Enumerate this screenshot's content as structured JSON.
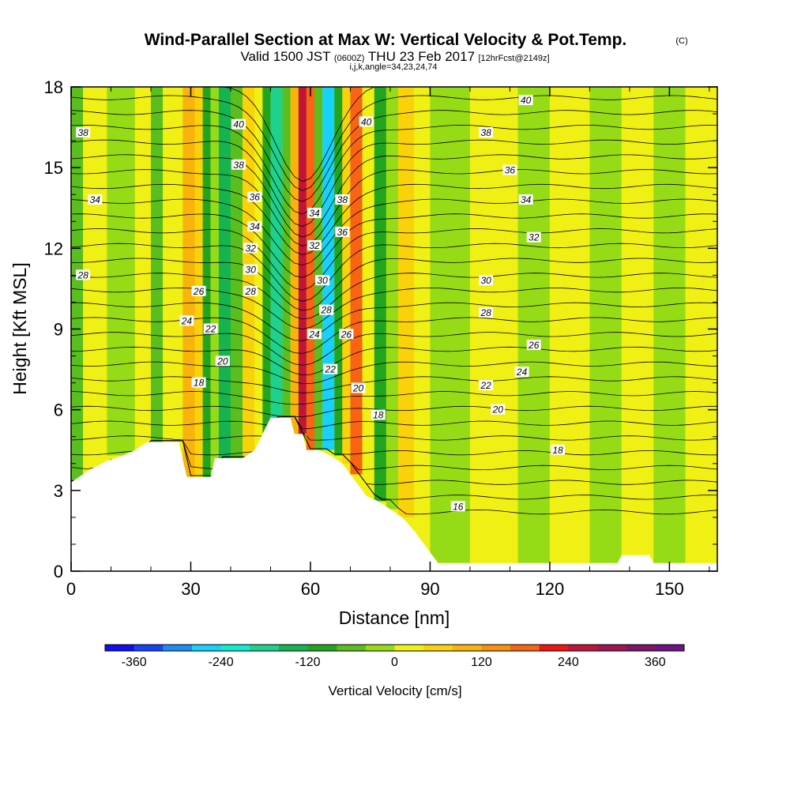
{
  "title": {
    "main": "Wind-Parallel Section at Max W: Vertical Velocity & Pot.Temp.",
    "main_mark": "(C)",
    "valid_a": "Valid 1500 JST",
    "valid_b": "(0600Z)",
    "valid_c": "THU 23 Feb 2017",
    "valid_d": "[12hrFcst@2149z]",
    "sub": "i,j,k,angle=34,23,24,74"
  },
  "chart_data": {
    "type": "heatmap",
    "xlabel": "Distance [nm]",
    "ylabel": "Height [Kft MSL]",
    "xlim": [
      0,
      162
    ],
    "ylim": [
      0,
      18
    ],
    "x_ticks": [
      0,
      30,
      60,
      90,
      120,
      150
    ],
    "y_ticks": [
      0,
      3,
      6,
      9,
      12,
      15,
      18
    ],
    "grid": false,
    "colorbar": {
      "label": "Vertical Velocity [cm/s]",
      "tick_labels": [
        -360,
        -240,
        -120,
        0,
        120,
        240,
        360
      ],
      "range": [
        -400,
        400
      ],
      "colors": [
        "#1010ee",
        "#1446f5",
        "#1e8cf5",
        "#16d2fa",
        "#10ecd0",
        "#1ed28c",
        "#16b450",
        "#22a41e",
        "#5abe1e",
        "#96dc16",
        "#f0f014",
        "#fad20a",
        "#f8b40a",
        "#fa9010",
        "#f86414",
        "#f01414",
        "#c01438",
        "#a01450",
        "#801468",
        "#6e1486"
      ]
    },
    "terrain_profile": [
      [
        0,
        3.3
      ],
      [
        2,
        3.5
      ],
      [
        5,
        3.8
      ],
      [
        9,
        4.1
      ],
      [
        13,
        4.3
      ],
      [
        16,
        4.5
      ],
      [
        19,
        4.8
      ],
      [
        27,
        4.8
      ],
      [
        29,
        3.5
      ],
      [
        35,
        3.5
      ],
      [
        36,
        4.2
      ],
      [
        43,
        4.2
      ],
      [
        46,
        4.5
      ],
      [
        48,
        5.1
      ],
      [
        50,
        5.7
      ],
      [
        55,
        5.7
      ],
      [
        56,
        5.1
      ],
      [
        58,
        5.1
      ],
      [
        59,
        4.5
      ],
      [
        62,
        4.5
      ],
      [
        65,
        4.3
      ],
      [
        68,
        4.0
      ],
      [
        70,
        3.6
      ],
      [
        72,
        3.2
      ],
      [
        74,
        2.8
      ],
      [
        77,
        2.6
      ],
      [
        80,
        2.3
      ],
      [
        83,
        2.0
      ],
      [
        86,
        1.5
      ],
      [
        88,
        1.1
      ],
      [
        90,
        0.7
      ],
      [
        92,
        0.3
      ],
      [
        95,
        0.3
      ],
      [
        137,
        0.3
      ],
      [
        138,
        0.6
      ],
      [
        145,
        0.6
      ],
      [
        146,
        0.3
      ],
      [
        162,
        0.3
      ]
    ],
    "vertical_velocity_cells": [
      {
        "x_range": [
          0,
          3
        ],
        "y_range": [
          3.3,
          18
        ],
        "w": -50
      },
      {
        "x_range": [
          3,
          9
        ],
        "y_range": [
          3.5,
          18
        ],
        "w": 20
      },
      {
        "x_range": [
          9,
          16
        ],
        "y_range": [
          4.3,
          18
        ],
        "w": -40
      },
      {
        "x_range": [
          16,
          20
        ],
        "y_range": [
          4.8,
          18
        ],
        "w": 30
      },
      {
        "x_range": [
          20,
          23
        ],
        "y_range": [
          4.8,
          18
        ],
        "w": -70
      },
      {
        "x_range": [
          23,
          28
        ],
        "y_range": [
          4.8,
          18
        ],
        "w": 30
      },
      {
        "x_range": [
          28,
          31
        ],
        "y_range": [
          3.5,
          18
        ],
        "w": 110
      },
      {
        "x_range": [
          31,
          33
        ],
        "y_range": [
          3.5,
          18
        ],
        "w": 40
      },
      {
        "x_range": [
          33,
          35
        ],
        "y_range": [
          3.5,
          18
        ],
        "w": -100
      },
      {
        "x_range": [
          35,
          37
        ],
        "y_range": [
          3.5,
          18
        ],
        "w": -30
      },
      {
        "x_range": [
          37,
          40
        ],
        "y_range": [
          4.2,
          18
        ],
        "w": -130
      },
      {
        "x_range": [
          40,
          43
        ],
        "y_range": [
          4.2,
          18
        ],
        "w": -60
      },
      {
        "x_range": [
          43,
          46
        ],
        "y_range": [
          4.2,
          18
        ],
        "w": 60
      },
      {
        "x_range": [
          46,
          48
        ],
        "y_range": [
          4.5,
          18
        ],
        "w": 20
      },
      {
        "x_range": [
          48,
          50
        ],
        "y_range": [
          5.1,
          18
        ],
        "w": -120
      },
      {
        "x_range": [
          50,
          53
        ],
        "y_range": [
          5.7,
          18
        ],
        "w": -170
      },
      {
        "x_range": [
          53,
          55
        ],
        "y_range": [
          5.7,
          18
        ],
        "w": -60
      },
      {
        "x_range": [
          55,
          57
        ],
        "y_range": [
          5.1,
          18
        ],
        "w": 110
      },
      {
        "x_range": [
          57,
          59
        ],
        "y_range": [
          5.1,
          18
        ],
        "w": 260
      },
      {
        "x_range": [
          59,
          61
        ],
        "y_range": [
          4.5,
          18
        ],
        "w": 170
      },
      {
        "x_range": [
          61,
          63
        ],
        "y_range": [
          4.5,
          18
        ],
        "w": -60
      },
      {
        "x_range": [
          63,
          66
        ],
        "y_range": [
          4.5,
          18
        ],
        "w": -270
      },
      {
        "x_range": [
          66,
          68
        ],
        "y_range": [
          4.3,
          18
        ],
        "w": -120
      },
      {
        "x_range": [
          68,
          70
        ],
        "y_range": [
          4.0,
          18
        ],
        "w": 60
      },
      {
        "x_range": [
          70,
          73
        ],
        "y_range": [
          3.6,
          18
        ],
        "w": 170
      },
      {
        "x_range": [
          73,
          76
        ],
        "y_range": [
          2.8,
          18
        ],
        "w": 30
      },
      {
        "x_range": [
          76,
          79
        ],
        "y_range": [
          2.6,
          18
        ],
        "w": -110
      },
      {
        "x_range": [
          79,
          82
        ],
        "y_range": [
          2.3,
          18
        ],
        "w": -40
      },
      {
        "x_range": [
          82,
          86
        ],
        "y_range": [
          2.0,
          18
        ],
        "w": 60
      },
      {
        "x_range": [
          86,
          90
        ],
        "y_range": [
          1.1,
          18
        ],
        "w": 30
      },
      {
        "x_range": [
          90,
          100
        ],
        "y_range": [
          0.3,
          18
        ],
        "w": -25
      },
      {
        "x_range": [
          100,
          112
        ],
        "y_range": [
          0.3,
          18
        ],
        "w": 20
      },
      {
        "x_range": [
          112,
          120
        ],
        "y_range": [
          0.3,
          18
        ],
        "w": -20
      },
      {
        "x_range": [
          120,
          130
        ],
        "y_range": [
          0.3,
          18
        ],
        "w": 15
      },
      {
        "x_range": [
          130,
          138
        ],
        "y_range": [
          0.3,
          18
        ],
        "w": -35
      },
      {
        "x_range": [
          138,
          146
        ],
        "y_range": [
          0.6,
          18
        ],
        "w": 20
      },
      {
        "x_range": [
          146,
          154
        ],
        "y_range": [
          0.3,
          18
        ],
        "w": -30
      },
      {
        "x_range": [
          154,
          162
        ],
        "y_range": [
          0.3,
          18
        ],
        "w": 15
      }
    ],
    "potential_temperature_labels": [
      {
        "text": "38",
        "x": 3,
        "y": 16.3
      },
      {
        "text": "34",
        "x": 6,
        "y": 13.8
      },
      {
        "text": "28",
        "x": 3,
        "y": 11.0
      },
      {
        "text": "40",
        "x": 42,
        "y": 16.6
      },
      {
        "text": "38",
        "x": 42,
        "y": 15.1
      },
      {
        "text": "36",
        "x": 46,
        "y": 13.9
      },
      {
        "text": "34",
        "x": 46,
        "y": 12.8
      },
      {
        "text": "32",
        "x": 45,
        "y": 12.0
      },
      {
        "text": "30",
        "x": 45,
        "y": 11.2
      },
      {
        "text": "28",
        "x": 45,
        "y": 10.4
      },
      {
        "text": "26",
        "x": 32,
        "y": 10.4
      },
      {
        "text": "24",
        "x": 29,
        "y": 9.3
      },
      {
        "text": "22",
        "x": 35,
        "y": 9.0
      },
      {
        "text": "20",
        "x": 38,
        "y": 7.8
      },
      {
        "text": "18",
        "x": 32,
        "y": 7.0
      },
      {
        "text": "34",
        "x": 61,
        "y": 13.3
      },
      {
        "text": "32",
        "x": 61,
        "y": 12.1
      },
      {
        "text": "30",
        "x": 63,
        "y": 10.8
      },
      {
        "text": "28",
        "x": 64,
        "y": 9.7
      },
      {
        "text": "24",
        "x": 61,
        "y": 8.8
      },
      {
        "text": "22",
        "x": 65,
        "y": 7.5
      },
      {
        "text": "38",
        "x": 68,
        "y": 13.8
      },
      {
        "text": "36",
        "x": 68,
        "y": 12.6
      },
      {
        "text": "26",
        "x": 69,
        "y": 8.8
      },
      {
        "text": "40",
        "x": 74,
        "y": 16.7
      },
      {
        "text": "20",
        "x": 72,
        "y": 6.8
      },
      {
        "text": "18",
        "x": 77,
        "y": 5.8
      },
      {
        "text": "40",
        "x": 114,
        "y": 17.5
      },
      {
        "text": "38",
        "x": 104,
        "y": 16.3
      },
      {
        "text": "36",
        "x": 110,
        "y": 14.9
      },
      {
        "text": "34",
        "x": 114,
        "y": 13.8
      },
      {
        "text": "32",
        "x": 116,
        "y": 12.4
      },
      {
        "text": "30",
        "x": 104,
        "y": 10.8
      },
      {
        "text": "28",
        "x": 104,
        "y": 9.6
      },
      {
        "text": "26",
        "x": 116,
        "y": 8.4
      },
      {
        "text": "24",
        "x": 113,
        "y": 7.4
      },
      {
        "text": "22",
        "x": 104,
        "y": 6.9
      },
      {
        "text": "20",
        "x": 107,
        "y": 6.0
      },
      {
        "text": "18",
        "x": 122,
        "y": 4.5
      },
      {
        "text": "16",
        "x": 97,
        "y": 2.4
      }
    ]
  }
}
